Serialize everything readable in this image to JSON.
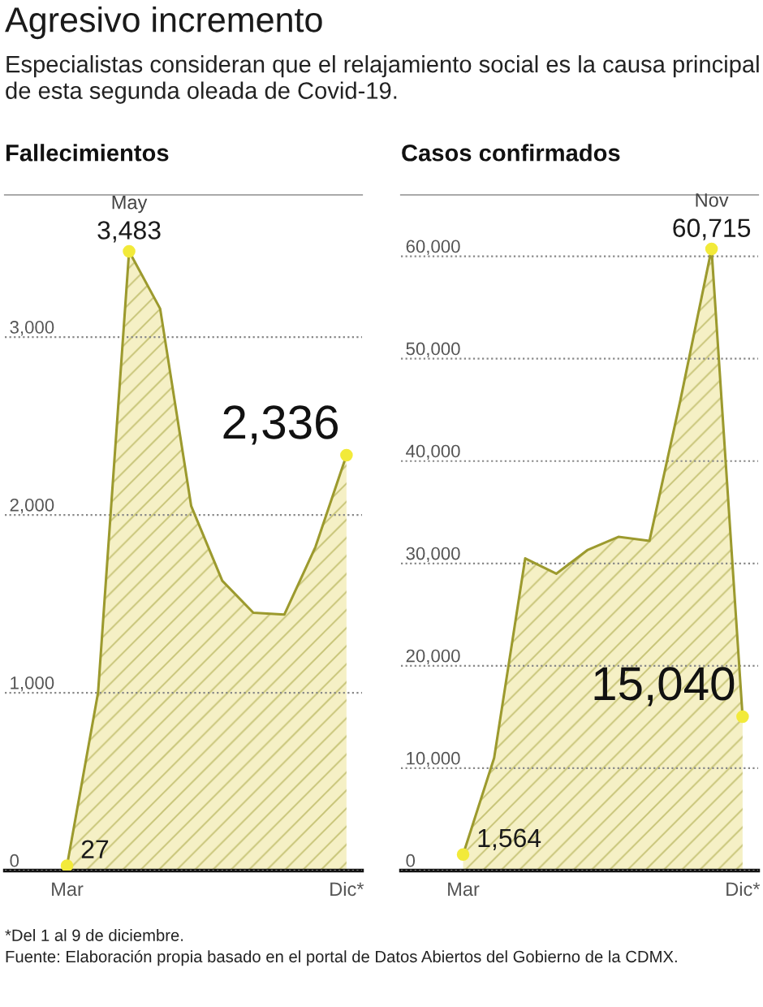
{
  "chart_data": [
    {
      "type": "other",
      "title": "Agresivo incremento",
      "subtitle": "Especialistas consideran que el relajamiento social es la causa principal de esta segunda oleada de Covid-19."
    },
    {
      "type": "area",
      "title": "Fallecimientos",
      "categories": [
        "Mar",
        null,
        null,
        null,
        null,
        null,
        null,
        null,
        null,
        "Dic*"
      ],
      "series": [
        {
          "color": "#9c9a2e",
          "values": [
            27,
            1000,
            3483,
            3160,
            2050,
            1630,
            1450,
            1440,
            1820,
            2336
          ],
          "value_labels": [
            "27",
            null,
            "3,483",
            null,
            null,
            null,
            null,
            null,
            null,
            "2,336"
          ]
        }
      ],
      "ylim": [
        0,
        3800
      ],
      "yticks": [
        0,
        {
          "value": 1000,
          "label": "1,000"
        },
        {
          "value": 2000,
          "label": "2,000"
        },
        {
          "value": 3000,
          "label": "3,000"
        }
      ],
      "grid": "y",
      "annotations": [
        {
          "text": "May",
          "y": 3483
        }
      ]
    },
    {
      "type": "area",
      "title": "Casos confirmados",
      "categories": [
        "Mar",
        null,
        null,
        null,
        null,
        null,
        null,
        null,
        null,
        "Dic*"
      ],
      "series": [
        {
          "color": "#9c9a2e",
          "values": [
            1564,
            11000,
            30500,
            29000,
            31300,
            32600,
            32200,
            46000,
            60715,
            15040
          ],
          "value_labels": [
            "1,564",
            null,
            null,
            null,
            null,
            null,
            null,
            null,
            "60,715",
            "15,040"
          ]
        }
      ],
      "ylim": [
        0,
        66000
      ],
      "yticks": [
        0,
        {
          "value": 10000,
          "label": "10,000"
        },
        {
          "value": 20000,
          "label": "20,000"
        },
        {
          "value": 30000,
          "label": "30,000"
        },
        {
          "value": 40000,
          "label": "40,000"
        },
        {
          "value": 50000,
          "label": "50,000"
        },
        {
          "value": 60000,
          "label": "60,000"
        }
      ],
      "grid": "y",
      "annotations": [
        {
          "text": "Nov",
          "y": 60715
        }
      ]
    },
    {
      "type": "other",
      "annotations": [
        "*Del 1 al 9 de diciembre.",
        "Fuente: Elaboración propia basado en el portal de Datos Abiertos del Gobierno de la CDMX."
      ]
    }
  ]
}
